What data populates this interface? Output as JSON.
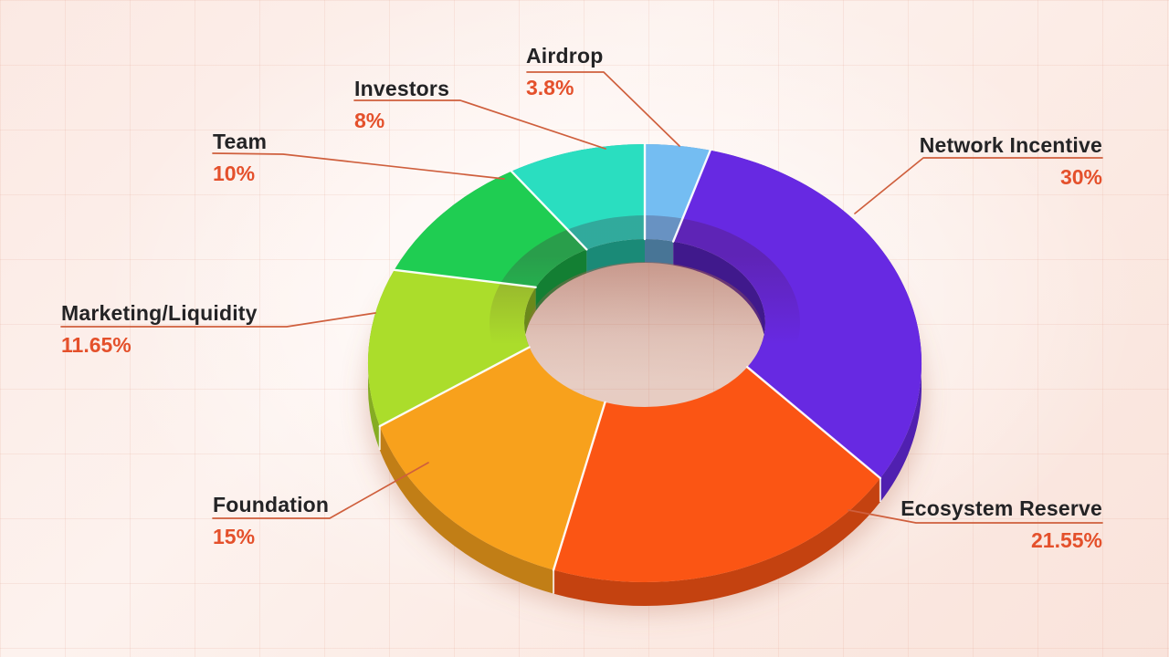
{
  "page": {
    "title": "Token allocation donut chart",
    "background_base_color": "#fbe9e3",
    "grid_line_color": "#e29e8a",
    "label_text_color": "#232325",
    "percent_text_color": "#e4502b",
    "leader_line_color": "#cf5f3d"
  },
  "chart_data": {
    "type": "pie",
    "variant": "3d-donut",
    "title": "",
    "legend_position": "callout-labels-around-chart",
    "start_angle_deg": 0,
    "direction": "clockwise",
    "total": 100,
    "slices": [
      {
        "label": "Airdrop",
        "value": 3.8,
        "pct_label": "3.8%",
        "color": "#74bdf2"
      },
      {
        "label": "Network Incentive",
        "value": 30,
        "pct_label": "30%",
        "color": "#6729e2"
      },
      {
        "label": "Ecosystem Reserve",
        "value": 21.55,
        "pct_label": "21.55%",
        "color": "#fb5514"
      },
      {
        "label": "Foundation",
        "value": 15,
        "pct_label": "15%",
        "color": "#f8a11c"
      },
      {
        "label": "Marketing/Liquidity",
        "value": 11.65,
        "pct_label": "11.65%",
        "color": "#abdd2b"
      },
      {
        "label": "Team",
        "value": 10,
        "pct_label": "10%",
        "color": "#1fcd52"
      },
      {
        "label": "Investors",
        "value": 8,
        "pct_label": "8%",
        "color": "#2adec0"
      }
    ]
  }
}
